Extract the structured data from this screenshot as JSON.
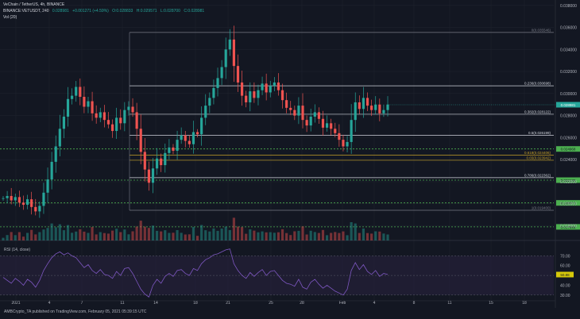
{
  "header": {
    "published_by": "AMBCrypto_TA published on TradingView.com, February 05, 2021 05:39:15 UTC",
    "symbol": "VeChain / TetherUS, 4h, BINANCE",
    "vol_label": "Vol (20)",
    "ohlc_line": [
      "BINANCE:VETUSDT, 240",
      "0.028981",
      "+0.001271 (+4.59%)",
      "O:0.028833",
      "H:0.029571",
      "L:0.028700",
      "C:0.028981"
    ]
  },
  "colors": {
    "background": "#131722",
    "grid": "#1e222d",
    "up": "#26a69a",
    "down": "#ef5350",
    "fib_line": "#787b86",
    "fib_gold": "#c9a227",
    "support_green": "#4caf50",
    "rsi_line": "#7e57c2",
    "rsi_band": "#2a2240"
  },
  "chart_data": [
    {
      "type": "candlestick",
      "title": "VeChain / TetherUS, 4h, BINANCE",
      "ylim": [
        0.0176,
        0.0382
      ],
      "y_ticks": [
        "0.038000",
        "0.036000",
        "0.034000",
        "0.032000",
        "0.030000",
        "0.028000",
        "0.026000",
        "0.024000",
        "0.022000",
        "0.020000",
        "0.018000"
      ],
      "x_ticks": [
        "2021",
        "4",
        "7",
        "11",
        "14",
        "18",
        "21",
        "25",
        "28",
        "Feb",
        "4",
        "8",
        "11",
        "15",
        "18"
      ],
      "last_price": "0.028981",
      "fib_levels": [
        {
          "label": "0(0.035546)",
          "value": 0.035546,
          "color": "grey"
        },
        {
          "label": "0.236(0.030698)",
          "value": 0.030698,
          "color": "white"
        },
        {
          "label": "0.382(0.028122)",
          "value": 0.028122,
          "color": "white"
        },
        {
          "label": "0.5(0.026199)",
          "value": 0.026199,
          "color": "white"
        },
        {
          "label": "0.618(0.024406)",
          "value": 0.024406,
          "color": "gold"
        },
        {
          "label": "0.65(0.023942)",
          "value": 0.023942,
          "color": "gold"
        },
        {
          "label": "0.786(0.022362)",
          "value": 0.022362,
          "color": "white"
        },
        {
          "label": "1(0.019400)",
          "value": 0.0194,
          "color": "grey"
        }
      ],
      "support_levels": [
        {
          "label": "0.024968",
          "value": 0.024968
        },
        {
          "label": "0.022136",
          "value": 0.022136
        },
        {
          "label": "0.020071",
          "value": 0.020071
        },
        {
          "label": "0.017895",
          "value": 0.017895
        }
      ],
      "price_path": [
        0.0205,
        0.0207,
        0.0203,
        0.0206,
        0.0201,
        0.0199,
        0.0204,
        0.0197,
        0.0193,
        0.0198,
        0.021,
        0.0222,
        0.0238,
        0.0252,
        0.0268,
        0.0279,
        0.0295,
        0.0298,
        0.0306,
        0.0297,
        0.0288,
        0.0293,
        0.0282,
        0.0278,
        0.0283,
        0.0276,
        0.0272,
        0.0266,
        0.0278,
        0.0273,
        0.0285,
        0.0288,
        0.0283,
        0.0268,
        0.0247,
        0.0231,
        0.0219,
        0.0232,
        0.0241,
        0.0235,
        0.0246,
        0.0251,
        0.0248,
        0.0258,
        0.0262,
        0.0257,
        0.0254,
        0.0265,
        0.0263,
        0.0278,
        0.0289,
        0.0296,
        0.0305,
        0.0314,
        0.0324,
        0.034,
        0.0349,
        0.0325,
        0.031,
        0.0298,
        0.0292,
        0.0302,
        0.0296,
        0.0303,
        0.0309,
        0.0301,
        0.0307,
        0.031,
        0.0303,
        0.0294,
        0.0287,
        0.0285,
        0.028,
        0.0289,
        0.0276,
        0.0271,
        0.0279,
        0.0283,
        0.0277,
        0.0269,
        0.0273,
        0.0268,
        0.0264,
        0.0258,
        0.0252,
        0.0256,
        0.0276,
        0.0292,
        0.0286,
        0.0296,
        0.0289,
        0.0285,
        0.029,
        0.0282,
        0.0285,
        0.029
      ]
    },
    {
      "type": "line",
      "title": "RSI (14, close)",
      "ylim": [
        25,
        80
      ],
      "y_ticks": [
        "70.00",
        "60.00",
        "50.00",
        "40.00",
        "30.00"
      ],
      "current_value": "50.88",
      "band": [
        30,
        70
      ],
      "values": [
        48,
        45,
        42,
        47,
        44,
        40,
        46,
        43,
        38,
        45,
        55,
        62,
        68,
        72,
        74,
        71,
        73,
        70,
        68,
        63,
        58,
        61,
        55,
        52,
        56,
        51,
        50,
        47,
        54,
        50,
        57,
        58,
        52,
        44,
        36,
        31,
        28,
        40,
        46,
        42,
        49,
        52,
        49,
        55,
        56,
        52,
        50,
        57,
        55,
        62,
        66,
        68,
        71,
        72,
        74,
        76,
        77,
        62,
        55,
        50,
        47,
        53,
        49,
        53,
        56,
        50,
        54,
        55,
        50,
        45,
        42,
        41,
        39,
        46,
        38,
        36,
        43,
        46,
        41,
        37,
        40,
        37,
        34,
        32,
        30,
        36,
        55,
        63,
        56,
        61,
        54,
        51,
        55,
        49,
        52,
        51
      ]
    }
  ]
}
